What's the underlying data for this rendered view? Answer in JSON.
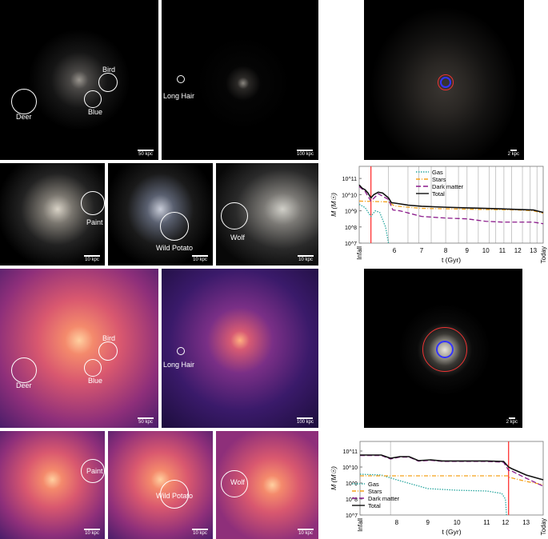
{
  "scale_bars": {
    "p1": "50 kpc",
    "p2": "100 kpc",
    "p3": "10 kpc",
    "p4": "10 kpc",
    "p5": "10 kpc",
    "p6": "50 kpc",
    "p7": "100 kpc",
    "p8": "10 kpc",
    "p9": "10 kpc",
    "p10": "10 kpc",
    "r1": "2 kpc",
    "r2": "2 kpc"
  },
  "labels": {
    "deer": "Deer",
    "bird": "Bird",
    "blue": "Blue",
    "long_hair": "Long Hair",
    "paint": "Paint",
    "wild_potato": "Wild Potato",
    "wolf": "Wolf"
  },
  "chart_data": [
    {
      "type": "line",
      "xlabel": "t (Gyr)",
      "ylabel": "M (M☉)",
      "yscale": "log",
      "ylim_log10": [
        7,
        11.75
      ],
      "x_tick_labels": [
        "Infall",
        "6",
        "7",
        "8",
        "9",
        "10",
        "11",
        "12",
        "13",
        "Today"
      ],
      "x_tick_values": [
        4.8,
        6,
        7,
        8,
        9,
        10,
        11,
        12,
        13,
        13.8
      ],
      "y_tick_labels": [
        "10^7",
        "10^8",
        "10^9",
        "10^10",
        "10^11"
      ],
      "legend_position": "top-center",
      "red_line_t": 5.2,
      "gray_lines_t": [
        5.8,
        6.5,
        6.9,
        7.4,
        8.0,
        8.6,
        9.0,
        9.6,
        10.2,
        10.6,
        11.1,
        11.6,
        12.3,
        12.8,
        13.3
      ],
      "series": [
        {
          "name": "Gas",
          "color": "#2aa7a0",
          "dash": "1.5 1.5",
          "points": [
            [
              4.8,
              9.4
            ],
            [
              5.0,
              9.2
            ],
            [
              5.2,
              8.65
            ],
            [
              5.35,
              9.0
            ],
            [
              5.5,
              8.9
            ],
            [
              5.7,
              8.0
            ],
            [
              5.8,
              7.0
            ]
          ]
        },
        {
          "name": "Stars",
          "color": "#f5a21b",
          "dash": "5 2 1 2",
          "points": [
            [
              4.8,
              9.6
            ],
            [
              5.8,
              9.55
            ],
            [
              6.0,
              9.3
            ],
            [
              7,
              9.15
            ],
            [
              9,
              9.1
            ],
            [
              12,
              9.05
            ],
            [
              13,
              9.0
            ],
            [
              13.8,
              8.85
            ]
          ]
        },
        {
          "name": "Dark matter",
          "color": "#8b1a8b",
          "dash": "6 3",
          "points": [
            [
              4.8,
              10.5
            ],
            [
              5.0,
              10.2
            ],
            [
              5.2,
              9.6
            ],
            [
              5.45,
              10.05
            ],
            [
              5.8,
              9.7
            ],
            [
              5.95,
              9.05
            ],
            [
              6.2,
              9.0
            ],
            [
              7,
              8.65
            ],
            [
              8,
              8.55
            ],
            [
              9,
              8.5
            ],
            [
              10,
              8.35
            ],
            [
              11,
              8.3
            ],
            [
              12,
              8.3
            ],
            [
              13,
              8.3
            ],
            [
              13.8,
              8.2
            ]
          ]
        },
        {
          "name": "Total",
          "color": "#111111",
          "dash": "",
          "points": [
            [
              4.8,
              10.6
            ],
            [
              4.9,
              10.4
            ],
            [
              5.0,
              10.3
            ],
            [
              5.1,
              10.1
            ],
            [
              5.2,
              9.8
            ],
            [
              5.3,
              10.0
            ],
            [
              5.45,
              10.15
            ],
            [
              5.6,
              10.1
            ],
            [
              5.8,
              9.8
            ],
            [
              5.9,
              9.5
            ],
            [
              6.0,
              9.48
            ],
            [
              6.5,
              9.35
            ],
            [
              7,
              9.28
            ],
            [
              8,
              9.22
            ],
            [
              9,
              9.18
            ],
            [
              10,
              9.15
            ],
            [
              11,
              9.12
            ],
            [
              12,
              9.08
            ],
            [
              13,
              9.05
            ],
            [
              13.8,
              8.9
            ]
          ]
        }
      ]
    },
    {
      "type": "line",
      "xlabel": "t (Gyr)",
      "ylabel": "M (M☉)",
      "yscale": "log",
      "ylim_log10": [
        7,
        11.6
      ],
      "x_tick_labels": [
        "Infall",
        "8",
        "9",
        "10",
        "11",
        "12",
        "13",
        "Today"
      ],
      "x_tick_values": [
        6.8,
        8,
        9,
        10,
        11,
        12,
        13,
        13.8
      ],
      "y_tick_labels": [
        "10^7",
        "10^8",
        "10^9",
        "10^10",
        "10^11"
      ],
      "legend_position": "left",
      "red_line_t": 12.15,
      "gray_lines_t": [
        7.8
      ],
      "series": [
        {
          "name": "Gas",
          "color": "#2aa7a0",
          "dash": "1.5 1.5",
          "points": [
            [
              6.8,
              9.55
            ],
            [
              7.5,
              9.5
            ],
            [
              8,
              9.2
            ],
            [
              9,
              8.65
            ],
            [
              10,
              8.55
            ],
            [
              11,
              8.5
            ],
            [
              11.8,
              8.35
            ],
            [
              12.0,
              8.0
            ],
            [
              12.05,
              7.0
            ]
          ]
        },
        {
          "name": "Stars",
          "color": "#f5a21b",
          "dash": "5 2 1 2",
          "points": [
            [
              6.8,
              9.45
            ],
            [
              12.1,
              9.45
            ],
            [
              12.2,
              9.35
            ],
            [
              13,
              9.1
            ],
            [
              13.8,
              8.9
            ]
          ]
        },
        {
          "name": "Dark matter",
          "color": "#8b1a8b",
          "dash": "6 3",
          "points": [
            [
              6.8,
              10.72
            ],
            [
              7.5,
              10.72
            ],
            [
              7.8,
              10.5
            ],
            [
              8.1,
              10.62
            ],
            [
              8.4,
              10.62
            ],
            [
              8.7,
              10.37
            ],
            [
              9.1,
              10.42
            ],
            [
              9.5,
              10.35
            ],
            [
              11,
              10.35
            ],
            [
              11.9,
              10.3
            ],
            [
              12.15,
              9.8
            ],
            [
              12.3,
              9.75
            ],
            [
              13,
              9.3
            ],
            [
              13.8,
              8.8
            ]
          ]
        },
        {
          "name": "Total",
          "color": "#111111",
          "dash": "",
          "points": [
            [
              6.8,
              10.75
            ],
            [
              7.5,
              10.75
            ],
            [
              7.8,
              10.55
            ],
            [
              8.1,
              10.65
            ],
            [
              8.4,
              10.65
            ],
            [
              8.7,
              10.4
            ],
            [
              9.1,
              10.45
            ],
            [
              9.5,
              10.38
            ],
            [
              11,
              10.38
            ],
            [
              11.9,
              10.35
            ],
            [
              12.15,
              10.0
            ],
            [
              12.3,
              9.9
            ],
            [
              13,
              9.5
            ],
            [
              13.8,
              9.2
            ]
          ]
        }
      ]
    }
  ]
}
